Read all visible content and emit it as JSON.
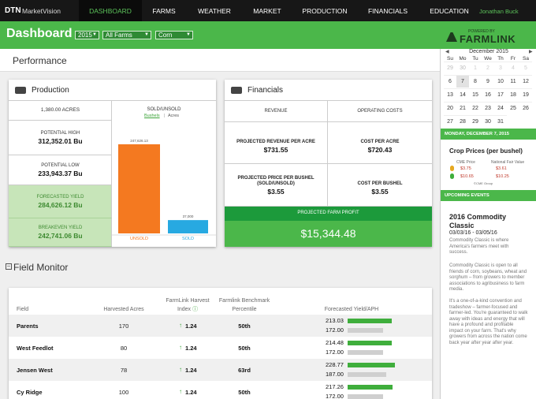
{
  "nav": {
    "brand": "DTN",
    "brand_sub": "MarketVision",
    "items": [
      "DASHBOARD",
      "FARMS",
      "WEATHER",
      "MARKET",
      "PRODUCTION",
      "FINANCIALS",
      "EDUCATION"
    ],
    "user": "Jonathan Buck"
  },
  "header": {
    "title": "Dashboard",
    "filters": [
      "2015",
      "All Farms",
      "Corn"
    ],
    "powered_by": "POWERED BY",
    "logo": "FARMLINK"
  },
  "performance": {
    "title": "Performance",
    "production": {
      "title": "Production",
      "acres": "1,380.00 ACRES",
      "stats": [
        {
          "label": "POTENTIAL HIGH",
          "value": "312,352.01 Bu"
        },
        {
          "label": "POTENTIAL LOW",
          "value": "233,943.37 Bu"
        },
        {
          "label": "FORECASTED YIELD",
          "value": "284,626.12 Bu"
        },
        {
          "label": "BREAKEVEN YIELD",
          "value": "242,741.06 Bu"
        }
      ],
      "sold_unsold": {
        "title": "SOLD/UNSOLD",
        "toggle": [
          "Bushels",
          "Acres"
        ],
        "bars": [
          {
            "name": "UNSOLD",
            "value": 247626.13,
            "value_label": "247,626.13",
            "color": "#f47920"
          },
          {
            "name": "SOLD",
            "value": 37000,
            "value_label": "37,000",
            "color": "#27a9e1"
          }
        ]
      }
    },
    "financials": {
      "title": "Financials",
      "columns": [
        "REVENUE",
        "OPERATING COSTS"
      ],
      "cells": [
        [
          {
            "label": "PROJECTED REVENUE PER ACRE",
            "value": "$731.55"
          },
          {
            "label": "COST PER ACRE",
            "value": "$720.43"
          }
        ],
        [
          {
            "label": "PROJECTED PRICE PER BUSHEL (SOLD/UNSOLD)",
            "value": "$3.55"
          },
          {
            "label": "COST PER BUSHEL",
            "value": "$3.55"
          }
        ]
      ],
      "profit_label": "PROJECTED FARM PROFIT",
      "profit": "$15,344.48"
    }
  },
  "field_monitor": {
    "title": "Field Monitor",
    "columns": [
      "Field",
      "Harvested Acres",
      "FarmLink Harvest Index",
      "Farmlink Benchmark Percentile",
      "Forecasted Yield/APH"
    ],
    "rows": [
      {
        "field": "Parents",
        "acres": 170,
        "index": 1.24,
        "percentile": "50th",
        "yield": 213.03,
        "aph": {
          "value": 172,
          "label": "172.00"
        }
      },
      {
        "field": "West Feedlot",
        "acres": 80,
        "index": 1.24,
        "percentile": "50th",
        "yield": 214.48,
        "aph": {
          "value": 172,
          "label": "172.00"
        }
      },
      {
        "field": "Jensen West",
        "acres": 78,
        "index": 1.24,
        "percentile": "63rd",
        "yield": 228.77,
        "aph": {
          "value": 187,
          "label": "187.00"
        }
      },
      {
        "field": "Cy Ridge",
        "acres": 100,
        "index": 1.24,
        "percentile": "50th",
        "yield": 217.26,
        "aph": {
          "value": 172,
          "label": "172.00"
        }
      }
    ]
  },
  "sidebar": {
    "calendar": {
      "month": "December 2015",
      "weekdays": [
        "Su",
        "Mo",
        "Tu",
        "We",
        "Th",
        "Fr",
        "Sa"
      ],
      "weeks": [
        [
          29,
          30,
          1,
          2,
          3,
          4,
          5
        ],
        [
          6,
          7,
          8,
          9,
          10,
          11,
          12
        ],
        [
          13,
          14,
          15,
          16,
          17,
          18,
          19
        ],
        [
          20,
          21,
          22,
          23,
          24,
          25,
          26
        ],
        [
          27,
          28,
          29,
          30,
          31
        ]
      ]
    },
    "date_banner": "MONDAY, DECEMBER 7, 2015",
    "crop_prices": {
      "title": "Crop Prices (per bushel)",
      "columns": [
        "CME Price",
        "National Fair Value"
      ],
      "rows": [
        [
          "$3.75",
          "$3.61"
        ],
        [
          "$10.65",
          "$10.25"
        ]
      ],
      "source": "©CME Group"
    },
    "events_banner": "UPCOMING EVENTS",
    "event": {
      "title": "2016 Commodity Classic",
      "dates": "03/03/16 - 03/05/16",
      "paragraphs": [
        "Commodity Classic is where America's farmers meet with success.",
        "Commodity Classic is open to all friends of corn, soybeans, wheat and sorghum – from growers to member associations to agribusiness to farm media.",
        "It's a one-of-a-kind convention and tradeshow – farmer-focused and farmer-led. You're guaranteed to walk away with ideas and energy that will have a profound and profitable impact on your farm. That's why growers from across the nation come back year after year after year."
      ]
    }
  }
}
